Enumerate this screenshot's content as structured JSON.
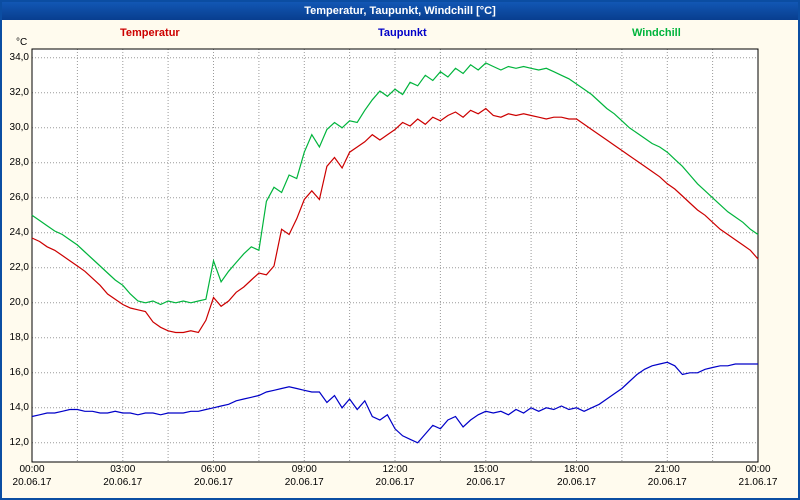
{
  "title_bar": {
    "title": "Temperatur, Taupunkt, Windchill [°C]"
  },
  "legend": [
    {
      "label": "Temperatur",
      "color": "#cc0000"
    },
    {
      "label": "Taupunkt",
      "color": "#0000c8"
    },
    {
      "label": "Windchill",
      "color": "#00b43c"
    }
  ],
  "axes": {
    "y_unit": "°C",
    "y_ticks": [
      12,
      14,
      16,
      18,
      20,
      22,
      24,
      26,
      28,
      30,
      32,
      34
    ],
    "y_tick_labels": [
      "12,0",
      "14,0",
      "16,0",
      "18,0",
      "20,0",
      "22,0",
      "24,0",
      "26,0",
      "28,0",
      "30,0",
      "32,0",
      "34,0"
    ],
    "x_ticks_hours": [
      0,
      3,
      6,
      9,
      12,
      15,
      18,
      21,
      24
    ],
    "x_tick_labels": [
      "00:00",
      "03:00",
      "06:00",
      "09:00",
      "12:00",
      "15:00",
      "18:00",
      "21:00",
      "00:00"
    ],
    "x_date_labels": [
      "20.06.17",
      "20.06.17",
      "20.06.17",
      "20.06.17",
      "20.06.17",
      "20.06.17",
      "20.06.17",
      "20.06.17",
      "21.06.17"
    ],
    "x_grid_step_hours": 1.5
  },
  "chart_data": {
    "type": "line",
    "title": "Temperatur, Taupunkt, Windchill [°C]",
    "xlabel": "",
    "ylabel": "°C",
    "grid": true,
    "legend_position": "top",
    "x_start_hours": 0,
    "x_step_hours": 0.25,
    "xlim": [
      0,
      24
    ],
    "ylim": [
      10.9,
      34.5
    ],
    "y_tick_range": [
      12,
      34
    ],
    "series": [
      {
        "name": "Temperatur",
        "color": "#cc0000",
        "values": [
          23.7,
          23.5,
          23.2,
          23.0,
          22.7,
          22.4,
          22.1,
          21.8,
          21.4,
          21.0,
          20.5,
          20.2,
          19.9,
          19.7,
          19.6,
          19.5,
          18.9,
          18.6,
          18.4,
          18.3,
          18.3,
          18.4,
          18.3,
          19.0,
          20.3,
          19.8,
          20.1,
          20.6,
          20.9,
          21.3,
          21.7,
          21.6,
          22.1,
          24.2,
          23.9,
          24.8,
          25.9,
          26.4,
          25.9,
          27.8,
          28.3,
          27.7,
          28.6,
          28.9,
          29.2,
          29.6,
          29.3,
          29.6,
          29.9,
          30.3,
          30.1,
          30.5,
          30.2,
          30.6,
          30.4,
          30.7,
          30.9,
          30.6,
          31.0,
          30.8,
          31.1,
          30.7,
          30.6,
          30.8,
          30.7,
          30.8,
          30.7,
          30.6,
          30.5,
          30.6,
          30.6,
          30.5,
          30.5,
          30.2,
          29.9,
          29.6,
          29.3,
          29.0,
          28.7,
          28.4,
          28.1,
          27.8,
          27.5,
          27.2,
          26.8,
          26.5,
          26.1,
          25.7,
          25.3,
          25.0,
          24.6,
          24.2,
          23.9,
          23.6,
          23.3,
          23.0,
          22.5
        ]
      },
      {
        "name": "Taupunkt",
        "color": "#0000c8",
        "values": [
          13.5,
          13.6,
          13.7,
          13.7,
          13.8,
          13.9,
          13.9,
          13.8,
          13.8,
          13.7,
          13.7,
          13.8,
          13.7,
          13.7,
          13.6,
          13.7,
          13.7,
          13.6,
          13.7,
          13.7,
          13.7,
          13.8,
          13.8,
          13.9,
          14.0,
          14.1,
          14.2,
          14.4,
          14.5,
          14.6,
          14.7,
          14.9,
          15.0,
          15.1,
          15.2,
          15.1,
          15.0,
          14.9,
          14.9,
          14.3,
          14.7,
          14.0,
          14.5,
          13.9,
          14.4,
          13.5,
          13.3,
          13.6,
          12.8,
          12.4,
          12.2,
          12.0,
          12.5,
          13.0,
          12.8,
          13.3,
          13.5,
          12.9,
          13.3,
          13.6,
          13.8,
          13.7,
          13.8,
          13.6,
          13.9,
          13.7,
          14.0,
          13.8,
          14.0,
          13.9,
          14.1,
          13.9,
          14.0,
          13.8,
          14.0,
          14.2,
          14.5,
          14.8,
          15.1,
          15.5,
          15.9,
          16.2,
          16.4,
          16.5,
          16.6,
          16.4,
          15.9,
          16.0,
          16.0,
          16.2,
          16.3,
          16.4,
          16.4,
          16.5,
          16.5,
          16.5,
          16.5
        ]
      },
      {
        "name": "Windchill",
        "color": "#00b43c",
        "values": [
          25.0,
          24.7,
          24.4,
          24.1,
          23.9,
          23.6,
          23.3,
          22.9,
          22.5,
          22.1,
          21.7,
          21.3,
          21.0,
          20.5,
          20.1,
          20.0,
          20.1,
          19.9,
          20.1,
          20.0,
          20.1,
          20.0,
          20.1,
          20.2,
          22.4,
          21.2,
          21.8,
          22.3,
          22.8,
          23.2,
          23.0,
          25.8,
          26.6,
          26.3,
          27.3,
          27.1,
          28.6,
          29.6,
          28.9,
          29.9,
          30.3,
          30.0,
          30.4,
          30.3,
          31.0,
          31.6,
          32.1,
          31.8,
          32.2,
          31.9,
          32.6,
          32.4,
          33.0,
          32.7,
          33.2,
          32.9,
          33.4,
          33.1,
          33.6,
          33.3,
          33.7,
          33.5,
          33.3,
          33.5,
          33.4,
          33.5,
          33.4,
          33.3,
          33.4,
          33.2,
          33.0,
          32.8,
          32.5,
          32.2,
          31.9,
          31.5,
          31.1,
          30.8,
          30.4,
          30.0,
          29.7,
          29.4,
          29.1,
          28.9,
          28.6,
          28.2,
          27.8,
          27.3,
          26.8,
          26.4,
          26.0,
          25.6,
          25.2,
          24.9,
          24.6,
          24.2,
          23.9
        ]
      }
    ]
  }
}
